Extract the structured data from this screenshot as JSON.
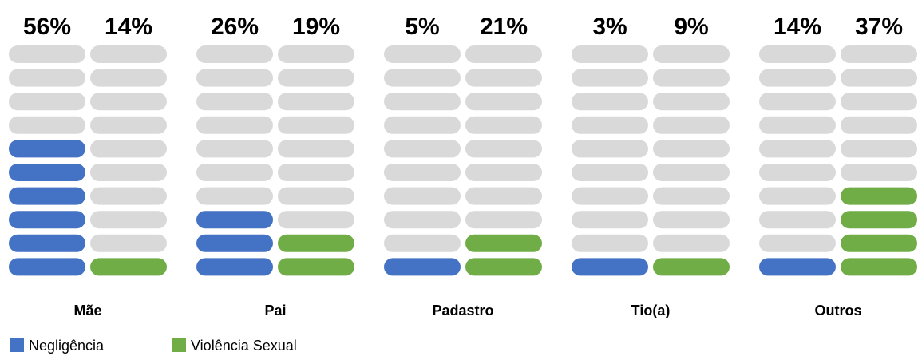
{
  "chart_data": {
    "type": "pictogram",
    "categories": [
      "Mãe",
      "Pai",
      "Padastro",
      "Tio(a)",
      "Outros"
    ],
    "series": [
      {
        "name": "Negligência",
        "color": "#4472c4",
        "values": [
          56,
          26,
          5,
          3,
          14
        ],
        "value_labels": [
          "56%",
          "26%",
          "5%",
          "3%",
          "14%"
        ]
      },
      {
        "name": "Violência Sexual",
        "color": "#70ad47",
        "values": [
          14,
          19,
          21,
          9,
          37
        ],
        "value_labels": [
          "14%",
          "19%",
          "21%",
          "9%",
          "37%"
        ]
      }
    ],
    "empty_color": "#d9d9d9"
  }
}
